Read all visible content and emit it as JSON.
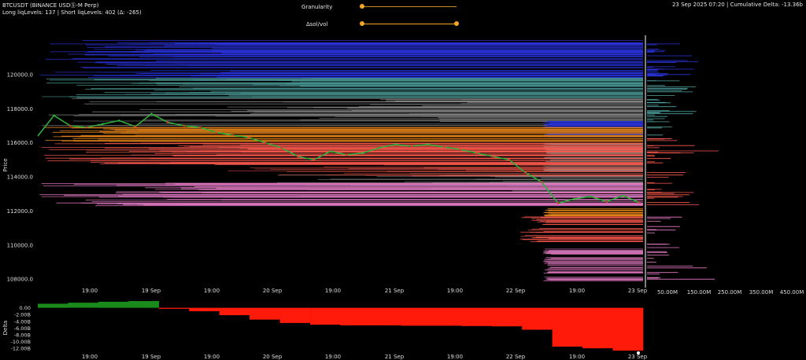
{
  "header": {
    "title": "BTCUSDT (BINANCE USDⓈ-M Perp)",
    "levels": "Long liqLevels: 137 | Short liqLevels: 402 (Δ: -265)",
    "timestamp_delta": "23 Sep 2025 07:20 | Cumulative Delta: -13.36b"
  },
  "controls": {
    "granularity_label": "Granularity",
    "sol_vol_label": "Δsol/vol"
  },
  "colors": {
    "long_dense": "#ff5a4f",
    "long_orange": "#f08a1c",
    "long_pink": "#e87cc8",
    "short_blue": "#2a34e0",
    "short_teal": "#4fa3a0",
    "short_gray": "#9a9a9a",
    "candle_up": "#2fae3a",
    "candle_down": "#e03a2a",
    "delta_pos": "#1a8a1a",
    "delta_neg": "#ff1a0a"
  },
  "chart_data": [
    {
      "type": "line",
      "title": "",
      "ylabel": "Price",
      "y_ticks": [
        "120000.0",
        "118000.0",
        "116000.0",
        "114000.0",
        "112000.0",
        "110000.0",
        "108000.0"
      ],
      "ylim": [
        107500,
        122300
      ],
      "x_ticks": [
        "19:00",
        "19 Sep",
        "19:00",
        "20 Sep",
        "19:00",
        "21 Sep",
        "19:00",
        "22 Sep",
        "19:00",
        "23 Sep"
      ],
      "series": [
        {
          "values": [
            116400,
            117600,
            117000,
            116900,
            117100,
            117300,
            116950,
            117700,
            117200,
            117000,
            116900,
            116600,
            116450,
            116300,
            116000,
            115700,
            115200,
            115000,
            115500,
            115300,
            115400,
            115700,
            115900,
            115800,
            115900,
            115750,
            115600,
            115400,
            115200,
            115000,
            114250,
            113700,
            112450,
            112700,
            112850,
            112550,
            112900,
            112500
          ]
        }
      ]
    },
    {
      "type": "bar",
      "title": "",
      "xlabel": "",
      "ylabel": "",
      "categories": [
        "50.00M",
        "150.00M",
        "250.00M",
        "350.00M",
        "450.00M"
      ]
    },
    {
      "type": "area",
      "title": "",
      "ylabel": "Delta",
      "y_ticks": [
        "0.00",
        "-2.00B",
        "-4.00B",
        "-6.00B",
        "-8.00B",
        "-10.00B",
        "-12.00B"
      ],
      "ylim": [
        -13.6,
        2.0
      ],
      "x_ticks": [
        "19:00",
        "19 Sep",
        "19:00",
        "20 Sep",
        "19:00",
        "21 Sep",
        "19:00",
        "22 Sep",
        "19:00",
        "23 Sep"
      ],
      "series": [
        {
          "values": [
            1.2,
            1.5,
            1.8,
            2.0,
            -0.3,
            -1.0,
            -2.2,
            -3.5,
            -4.5,
            -5.0,
            -5.2,
            -5.2,
            -5.3,
            -5.3,
            -5.4,
            -5.5,
            -6.5,
            -11.5,
            -12.0,
            -12.7,
            -13.36
          ]
        }
      ]
    }
  ]
}
